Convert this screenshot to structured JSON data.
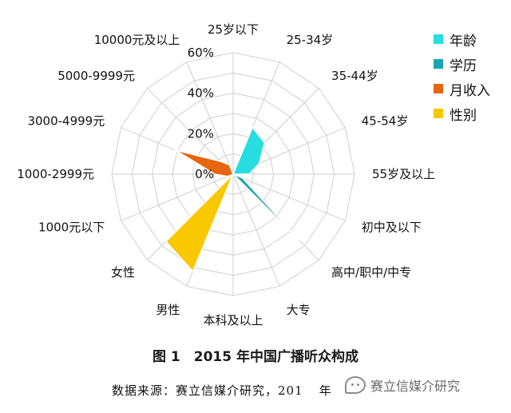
{
  "chart_data": {
    "type": "radar",
    "categories": [
      "25岁以下",
      "25-34岁",
      "35-44岁",
      "45-54岁",
      "55岁及以上",
      "初中及以下",
      "高中/职中/中专",
      "大专",
      "本科及以上",
      "男性",
      "女性",
      "1000元以下",
      "1000-2999元",
      "3000-4999元",
      "5000-9999元",
      "10000元及以上"
    ],
    "axis": {
      "ticks": [
        "0%",
        "20%",
        "40%",
        "60%"
      ],
      "max": 60
    },
    "series": [
      {
        "name": "年龄",
        "color": "#27DDE0",
        "values": [
          0,
          25,
          22,
          14,
          8,
          0,
          0,
          0,
          0,
          0,
          0,
          0,
          0,
          0,
          0,
          0
        ]
      },
      {
        "name": "学历",
        "color": "#1AA4B0",
        "values": [
          0,
          0,
          0,
          0,
          0,
          5,
          46,
          0,
          0,
          0,
          0,
          0,
          0,
          0,
          0,
          0
        ]
      },
      {
        "name": "月收入",
        "color": "#E8650E",
        "values": [
          0,
          0,
          0,
          0,
          0,
          0,
          0,
          0,
          0,
          0,
          0,
          3,
          9,
          31,
          9,
          5
        ]
      },
      {
        "name": "性别",
        "color": "#F9C800",
        "values": [
          0,
          0,
          0,
          0,
          0,
          0,
          0,
          0,
          0,
          52,
          47,
          0,
          0,
          0,
          0,
          0
        ]
      }
    ],
    "grid": true,
    "legend": "right"
  },
  "caption": "图 1　2015 年中国广播听众构成",
  "source": "数据来源：赛立信媒介研究，201",
  "source_tail": "年",
  "watermark": "赛立信媒介研究"
}
